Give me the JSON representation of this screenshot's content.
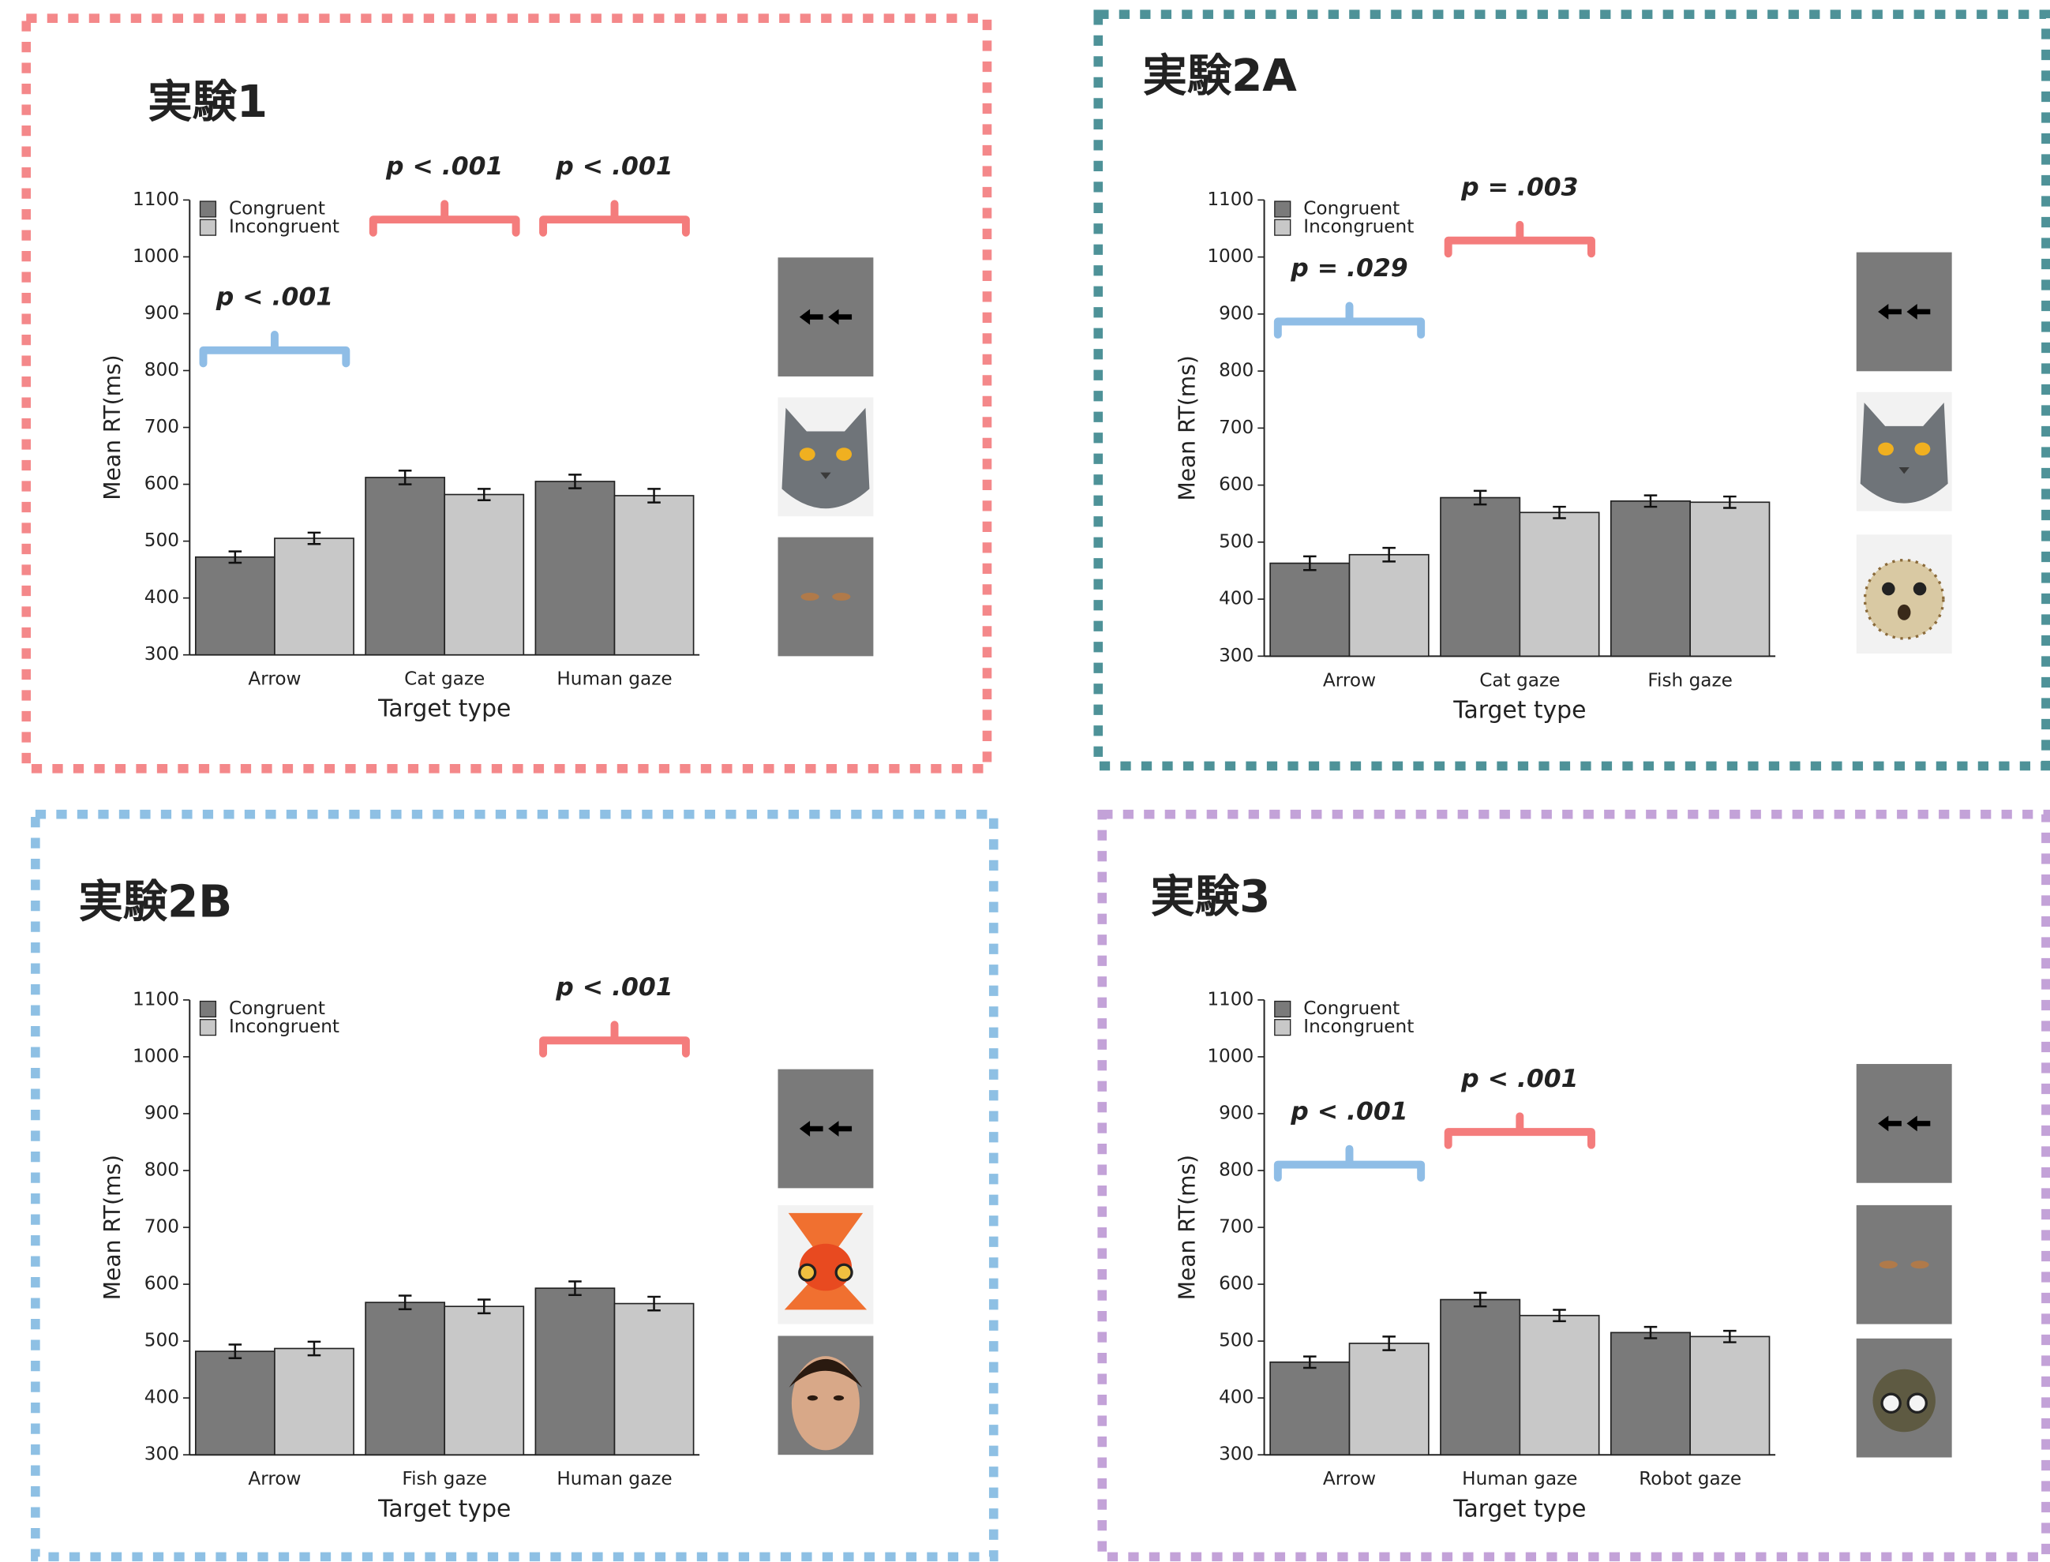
{
  "chart_data": [
    {
      "type": "bar",
      "title": "実験1",
      "border_color": "#f4888a",
      "xlabel": "Target type",
      "ylabel": "Mean RT(ms)",
      "categories": [
        "Arrow",
        "Cat gaze",
        "Human gaze"
      ],
      "series": [
        {
          "name": "Congruent",
          "color": "#7a7a7a",
          "values": [
            472,
            612,
            605
          ],
          "errors": [
            10,
            12,
            12
          ]
        },
        {
          "name": "Incongruent",
          "color": "#c8c8c8",
          "values": [
            505,
            582,
            580
          ],
          "errors": [
            10,
            10,
            12
          ]
        }
      ],
      "ylim": [
        300,
        1100
      ],
      "yticks": [
        300,
        400,
        500,
        600,
        700,
        800,
        900,
        1000,
        1100
      ],
      "annotations": [
        {
          "text": "p < .001",
          "category": 0,
          "color": "#8fbde6"
        },
        {
          "text": "p < .001",
          "category": 1,
          "color": "#f47c7c"
        },
        {
          "text": "p < .001",
          "category": 2,
          "color": "#f47c7c"
        }
      ]
    },
    {
      "type": "bar",
      "title": "実験2A",
      "border_color": "#4e9298",
      "xlabel": "Target type",
      "ylabel": "Mean RT(ms)",
      "categories": [
        "Arrow",
        "Cat gaze",
        "Fish gaze"
      ],
      "series": [
        {
          "name": "Congruent",
          "color": "#7a7a7a",
          "values": [
            463,
            578,
            572
          ],
          "errors": [
            12,
            12,
            10
          ]
        },
        {
          "name": "Incongruent",
          "color": "#c8c8c8",
          "values": [
            478,
            552,
            570
          ],
          "errors": [
            12,
            10,
            10
          ]
        }
      ],
      "ylim": [
        300,
        1100
      ],
      "yticks": [
        300,
        400,
        500,
        600,
        700,
        800,
        900,
        1000,
        1100
      ],
      "annotations": [
        {
          "text": "p = .029",
          "category": 0,
          "color": "#8fbde6"
        },
        {
          "text": "p = .003",
          "category": 1,
          "color": "#f47c7c"
        }
      ]
    },
    {
      "type": "bar",
      "title": "実験2B",
      "border_color": "#8ec0e4",
      "xlabel": "Target type",
      "ylabel": "Mean RT(ms)",
      "categories": [
        "Arrow",
        "Fish gaze",
        "Human gaze"
      ],
      "series": [
        {
          "name": "Congruent",
          "color": "#7a7a7a",
          "values": [
            482,
            568,
            593
          ],
          "errors": [
            12,
            12,
            12
          ]
        },
        {
          "name": "Incongruent",
          "color": "#c8c8c8",
          "values": [
            487,
            561,
            566
          ],
          "errors": [
            12,
            12,
            12
          ]
        }
      ],
      "ylim": [
        300,
        1100
      ],
      "yticks": [
        300,
        400,
        500,
        600,
        700,
        800,
        900,
        1000,
        1100
      ],
      "annotations": [
        {
          "text": "p < .001",
          "category": 2,
          "color": "#f47c7c"
        }
      ]
    },
    {
      "type": "bar",
      "title": "実験3",
      "border_color": "#c3a2d8",
      "xlabel": "Target type",
      "ylabel": "Mean RT(ms)",
      "categories": [
        "Arrow",
        "Human gaze",
        "Robot gaze"
      ],
      "series": [
        {
          "name": "Congruent",
          "color": "#7a7a7a",
          "values": [
            463,
            573,
            515
          ],
          "errors": [
            10,
            12,
            10
          ]
        },
        {
          "name": "Incongruent",
          "color": "#c8c8c8",
          "values": [
            496,
            545,
            508
          ],
          "errors": [
            12,
            10,
            10
          ]
        }
      ],
      "ylim": [
        300,
        1100
      ],
      "yticks": [
        300,
        400,
        500,
        600,
        700,
        800,
        900,
        1000,
        1100
      ],
      "annotations": [
        {
          "text": "p < .001",
          "category": 0,
          "color": "#8fbde6"
        },
        {
          "text": "p < .001",
          "category": 1,
          "color": "#f47c7c"
        }
      ]
    }
  ]
}
